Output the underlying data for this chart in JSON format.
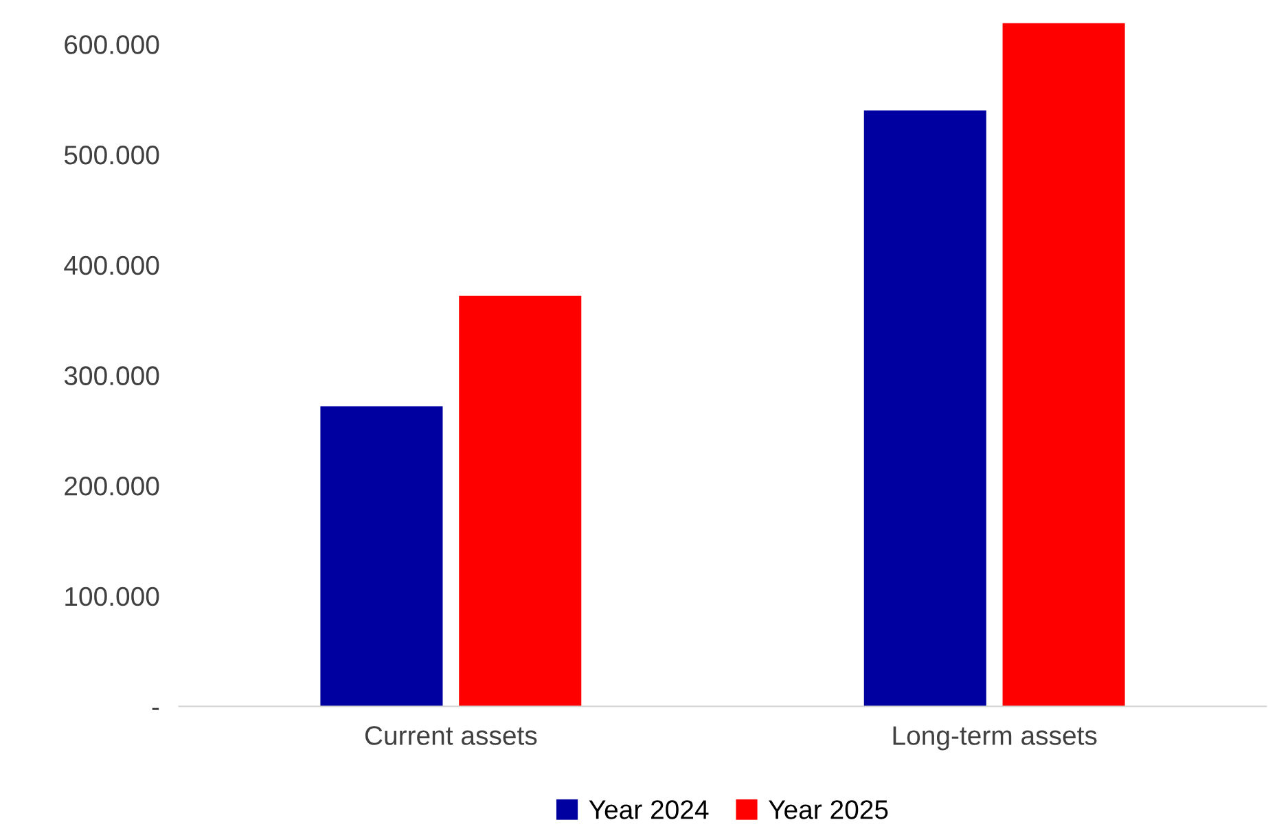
{
  "chart_data": {
    "type": "bar",
    "categories": [
      "Current assets",
      "Long-term assets"
    ],
    "series": [
      {
        "name": "Year 2024",
        "color": "#0000a0",
        "values": [
          272000,
          540000
        ]
      },
      {
        "name": "Year 2025",
        "color": "#ff0000",
        "values": [
          372000,
          619000
        ]
      }
    ],
    "ylim": [
      0,
      625000
    ],
    "yticks": [
      {
        "value": 0,
        "label": "-"
      },
      {
        "value": 100000,
        "label": "100.000"
      },
      {
        "value": 200000,
        "label": "200.000"
      },
      {
        "value": 300000,
        "label": "300.000"
      },
      {
        "value": 400000,
        "label": "400.000"
      },
      {
        "value": 500000,
        "label": "500.000"
      },
      {
        "value": 600000,
        "label": "600.000"
      }
    ],
    "grid": false,
    "legend": "bottom"
  }
}
